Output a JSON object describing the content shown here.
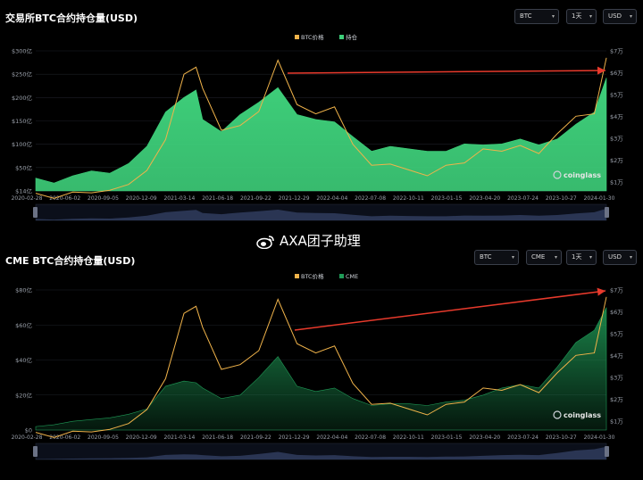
{
  "watermark": "AXA团子助理",
  "brand": "coinglass",
  "x_ticks": [
    "2020-02-28",
    "2020-06-02",
    "2020-09-05",
    "2020-12-09",
    "2021-03-14",
    "2021-06-18",
    "2021-09-22",
    "2021-12-29",
    "2022-04-04",
    "2022-07-08",
    "2022-10-11",
    "2023-01-15",
    "2023-04-20",
    "2023-07-24",
    "2023-10-27",
    "2024-01-30"
  ],
  "panels": [
    {
      "title": "交易所BTC合约持仓量(USD)",
      "controls": [
        "BTC",
        "1天",
        "USD"
      ],
      "legend": [
        "BTC价格",
        "持仓"
      ],
      "left_ticks": [
        "$300亿",
        "$250亿",
        "$200亿",
        "$150亿",
        "$100亿",
        "$50亿",
        "$14亿"
      ],
      "right_ticks": [
        "$7万",
        "$6万",
        "$5万",
        "$4万",
        "$3万",
        "$2万",
        "$1万"
      ]
    },
    {
      "title": "CME BTC合约持仓量(USD)",
      "controls": [
        "BTC",
        "CME",
        "1天",
        "USD"
      ],
      "legend": [
        "BTC价格",
        "CME"
      ],
      "left_ticks": [
        "$80亿",
        "$60亿",
        "$40亿",
        "$20亿",
        "$0"
      ],
      "right_ticks": [
        "$7万",
        "$6万",
        "$5万",
        "$4万",
        "$3万",
        "$2万",
        "$1万"
      ]
    }
  ],
  "colors": {
    "price": "#f0b34a",
    "oi": "#3ecf7a",
    "cme": "#1f9b57",
    "arrow": "#e83a2c",
    "nav": "#2d3a5a"
  },
  "chart_data": [
    {
      "type": "area",
      "title": "交易所BTC合约持仓量(USD)",
      "x": [
        "2020-02-28",
        "2020-04-15",
        "2020-06-02",
        "2020-07-20",
        "2020-09-05",
        "2020-10-23",
        "2020-12-09",
        "2021-01-26",
        "2021-03-14",
        "2021-04-14",
        "2021-05-01",
        "2021-06-18",
        "2021-08-05",
        "2021-09-22",
        "2021-11-10",
        "2021-12-29",
        "2022-02-15",
        "2022-04-04",
        "2022-05-21",
        "2022-07-08",
        "2022-08-25",
        "2022-10-11",
        "2022-11-28",
        "2023-01-15",
        "2023-03-03",
        "2023-04-20",
        "2023-06-07",
        "2023-07-24",
        "2023-09-10",
        "2023-10-27",
        "2023-12-14",
        "2024-01-30",
        "2024-03-01"
      ],
      "series": [
        {
          "name": "持仓",
          "axis": "left",
          "values": [
            40,
            30,
            45,
            55,
            50,
            70,
            105,
            175,
            205,
            220,
            160,
            135,
            170,
            195,
            225,
            170,
            160,
            155,
            125,
            95,
            105,
            100,
            95,
            95,
            110,
            108,
            110,
            120,
            108,
            120,
            150,
            175,
            245
          ]
        },
        {
          "name": "BTC价格",
          "axis": "right",
          "values": [
            9000,
            6800,
            9500,
            9200,
            10300,
            12800,
            18800,
            32000,
            60000,
            63000,
            54000,
            36000,
            38000,
            44000,
            66000,
            47000,
            43000,
            46000,
            30000,
            21000,
            21500,
            19000,
            16500,
            21000,
            22000,
            28000,
            27000,
            29500,
            26000,
            34500,
            42000,
            43000,
            67000
          ]
        }
      ],
      "ylim_left": [
        14,
        300
      ],
      "ylim_right": [
        10000,
        70000
      ]
    },
    {
      "type": "area",
      "title": "CME BTC合约持仓量(USD)",
      "x": [
        "2020-02-28",
        "2020-04-15",
        "2020-06-02",
        "2020-07-20",
        "2020-09-05",
        "2020-10-23",
        "2020-12-09",
        "2021-01-26",
        "2021-03-14",
        "2021-04-14",
        "2021-05-01",
        "2021-06-18",
        "2021-08-05",
        "2021-09-22",
        "2021-11-10",
        "2021-12-29",
        "2022-02-15",
        "2022-04-04",
        "2022-05-21",
        "2022-07-08",
        "2022-08-25",
        "2022-10-11",
        "2022-11-28",
        "2023-01-15",
        "2023-03-03",
        "2023-04-20",
        "2023-06-07",
        "2023-07-24",
        "2023-09-10",
        "2023-10-27",
        "2023-12-14",
        "2024-01-30",
        "2024-03-01"
      ],
      "series": [
        {
          "name": "CME",
          "axis": "left",
          "values": [
            2,
            3,
            5,
            6,
            7,
            9,
            12,
            25,
            28,
            27,
            24,
            18,
            20,
            30,
            42,
            25,
            22,
            24,
            18,
            14,
            15,
            15,
            14,
            16,
            17,
            20,
            24,
            26,
            24,
            36,
            50,
            57,
            70
          ]
        },
        {
          "name": "BTC价格",
          "axis": "right",
          "values": [
            9000,
            6800,
            9500,
            9200,
            10300,
            12800,
            18800,
            32000,
            60000,
            63000,
            54000,
            36000,
            38000,
            44000,
            66000,
            47000,
            43000,
            46000,
            30000,
            21000,
            21500,
            19000,
            16500,
            21000,
            22000,
            28000,
            27000,
            29500,
            26000,
            34500,
            42000,
            43000,
            67000
          ]
        }
      ],
      "ylim_left": [
        0,
        80
      ],
      "ylim_right": [
        10000,
        70000
      ]
    }
  ]
}
